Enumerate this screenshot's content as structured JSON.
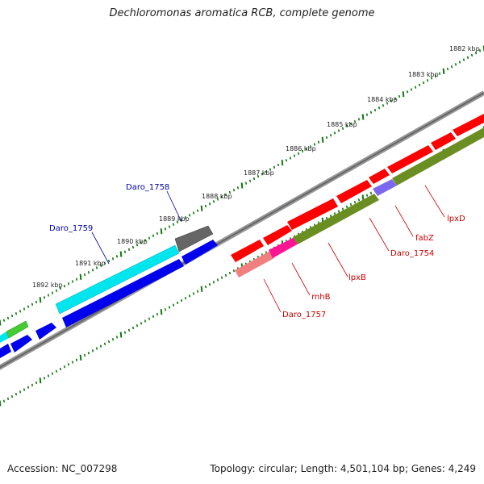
{
  "title": "Dechloromonas aromatica RCB, complete genome",
  "footer": {
    "accession": "Accession: NC_007298",
    "summary": "Topology: circular; Length: 4,501,104 bp; Genes: 4,249"
  },
  "scale_labels": [
    "1882 kbp",
    "1883 kbp",
    "1884 kbp",
    "1885 kbp",
    "1886 kbp",
    "1887 kbp",
    "1888 kbp",
    "1889 kbp",
    "1890 kbp",
    "1891 kbp",
    "1892 kbp"
  ],
  "gene_labels": [
    {
      "text": "Daro_1758",
      "color": "#0000aa"
    },
    {
      "text": "Daro_1759",
      "color": "#0000aa"
    },
    {
      "text": "lpxD",
      "color": "#cc0000"
    },
    {
      "text": "fabZ",
      "color": "#cc0000"
    },
    {
      "text": "Daro_1754",
      "color": "#cc0000"
    },
    {
      "text": "lpxB",
      "color": "#cc0000"
    },
    {
      "text": "rnhB",
      "color": "#cc0000"
    },
    {
      "text": "Daro_1757",
      "color": "#cc0000"
    }
  ],
  "colors": {
    "backbone": "#777777",
    "tick": "#117711",
    "forward_cds": "#ff0000",
    "reverse_cds": "#0000ee",
    "rna_cyan": "#00e5ee",
    "green_feature": "#44cc33",
    "olive_track": "#6b8e23",
    "purple_feature": "#7b68ee",
    "magenta_feature": "#ff1493",
    "pink_feature": "#f08080",
    "grey_feature": "#666666"
  }
}
